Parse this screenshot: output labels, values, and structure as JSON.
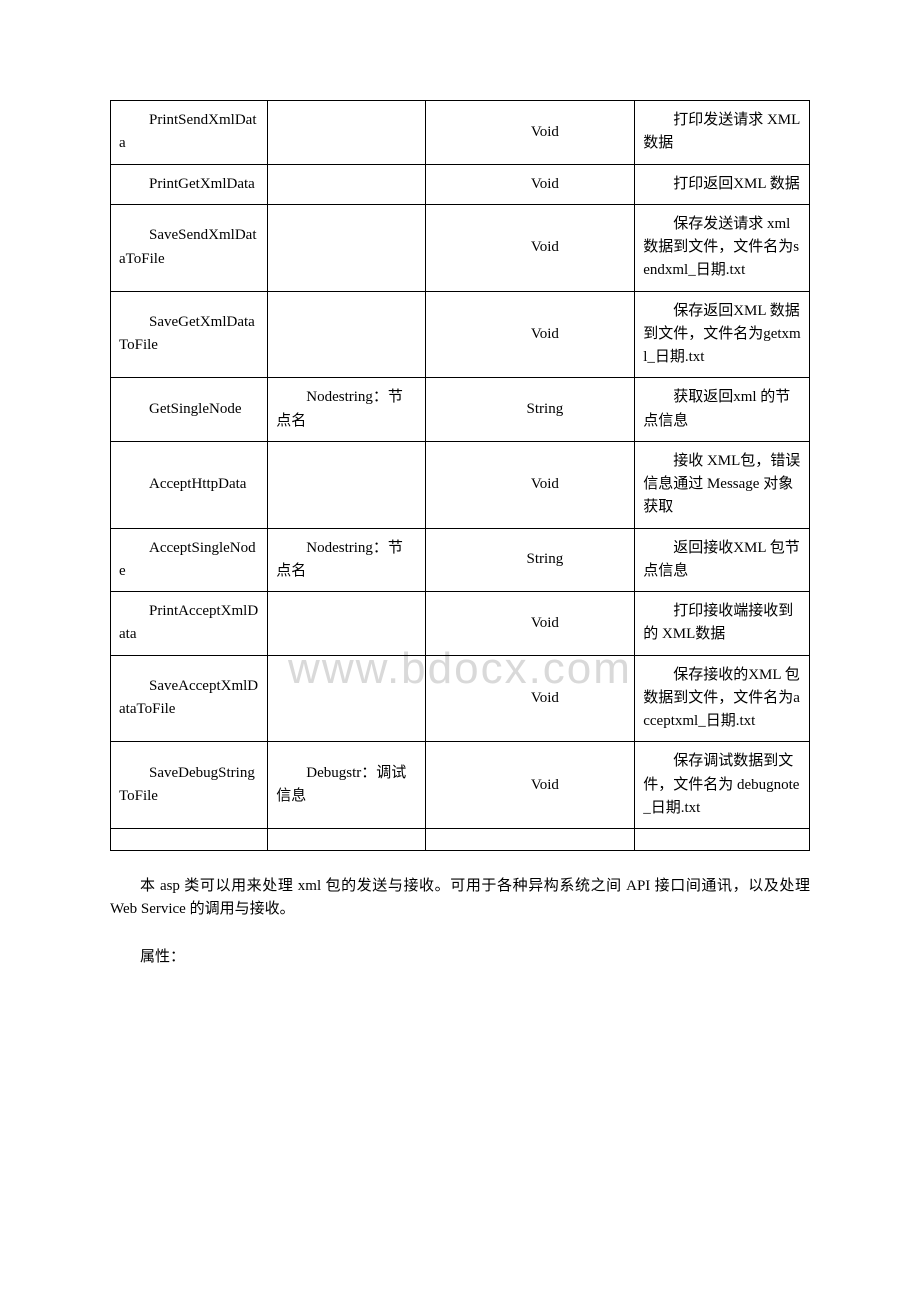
{
  "watermark": "www.bdocx.com",
  "table": {
    "rows": [
      {
        "c1": "PrintSendXmlData",
        "c2": "",
        "c3": "Void",
        "c4": "打印发送请求 XML 数据"
      },
      {
        "c1": "PrintGetXmlData",
        "c2": "",
        "c3": "Void",
        "c4": "打印返回XML 数据"
      },
      {
        "c1": "SaveSendXmlDataToFile",
        "c2": "",
        "c3": "Void",
        "c4": "保存发送请求 xml 数据到文件，文件名为sendxml_日期.txt"
      },
      {
        "c1": "SaveGetXmlDataToFile",
        "c2": "",
        "c3": "Void",
        "c4": "保存返回XML 数据到文件，文件名为getxml_日期.txt"
      },
      {
        "c1": "GetSingleNode",
        "c2": "Nodestring：节点名",
        "c3": "String",
        "c4": "获取返回xml 的节点信息"
      },
      {
        "c1": "AcceptHttpData",
        "c2": "",
        "c3": "Void",
        "c4": "接收 XML包，错误信息通过 Message 对象获取"
      },
      {
        "c1": "AcceptSingleNode",
        "c2": "Nodestring：节点名",
        "c3": "String",
        "c4": "返回接收XML 包节点信息"
      },
      {
        "c1": "PrintAcceptXmlData",
        "c2": "",
        "c3": "Void",
        "c4": "打印接收端接收到的 XML数据"
      },
      {
        "c1": "SaveAcceptXmlDataToFile",
        "c2": "",
        "c3": "Void",
        "c4": "保存接收的XML 包数据到文件，文件名为acceptxml_日期.txt"
      },
      {
        "c1": "SaveDebugStringToFile",
        "c2": "Debugstr：调试信息",
        "c3": "Void",
        "c4": "保存调试数据到文件，文件名为 debugnote_日期.txt"
      }
    ]
  },
  "paragraphs": [
    "本 asp 类可以用来处理 xml 包的发送与接收。可用于各种异构系统之间 API 接口间通讯，以及处理 Web Service 的调用与接收。",
    "属性："
  ]
}
